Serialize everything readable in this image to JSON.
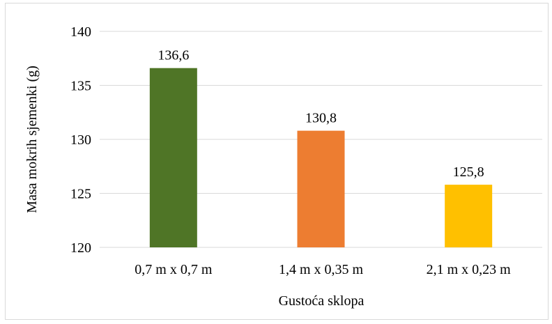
{
  "chart_data": {
    "type": "bar",
    "categories": [
      "0,7 m x 0,7 m",
      "1,4 m x 0,35 m",
      "2,1 m x 0,23 m"
    ],
    "values": [
      136.6,
      130.8,
      125.8
    ],
    "data_labels": [
      "136,6",
      "130,8",
      "125,8"
    ],
    "colors": [
      "#4f7526",
      "#ed7d31",
      "#ffc000"
    ],
    "title": "",
    "xlabel": "Gustoća sklopa",
    "ylabel": "Masa mokrih sjemenki (g)",
    "ylim": [
      120,
      140
    ],
    "yticks": [
      120,
      125,
      130,
      135,
      140
    ],
    "ytick_labels": [
      "120",
      "125",
      "130",
      "135",
      "140"
    ],
    "grid": true,
    "legend": "none",
    "gridline_color": "#d9d9d9"
  }
}
